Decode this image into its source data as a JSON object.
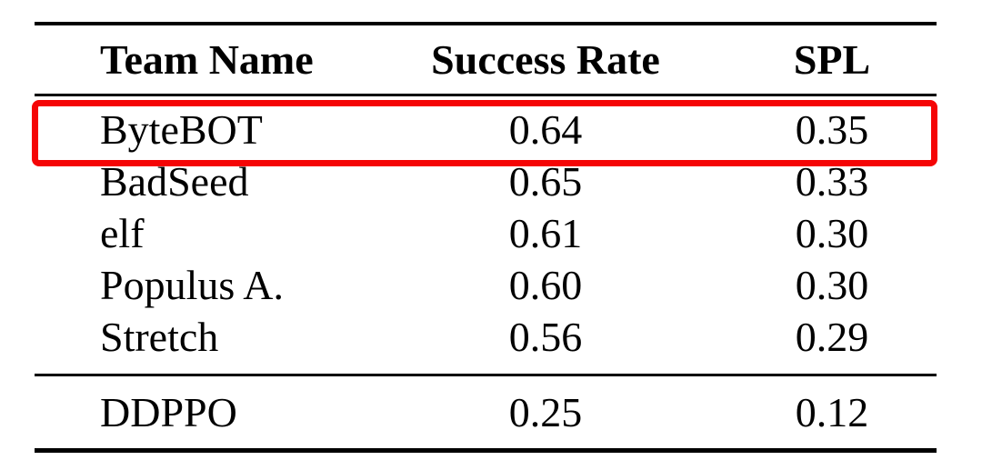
{
  "table": {
    "columns": {
      "team": "Team Name",
      "success_rate": "Success Rate",
      "spl": "SPL"
    },
    "rows": [
      {
        "team": "ByteBOT",
        "success_rate": "0.64",
        "spl": "0.35",
        "highlighted": true
      },
      {
        "team": "BadSeed",
        "success_rate": "0.65",
        "spl": "0.33",
        "highlighted": false
      },
      {
        "team": "elf",
        "success_rate": "0.61",
        "spl": "0.30",
        "highlighted": false
      },
      {
        "team": "Populus A.",
        "success_rate": "0.60",
        "spl": "0.30",
        "highlighted": false
      },
      {
        "team": "Stretch",
        "success_rate": "0.56",
        "spl": "0.29",
        "highlighted": false
      }
    ],
    "baseline_rows": [
      {
        "team": "DDPPO",
        "success_rate": "0.25",
        "spl": "0.12",
        "highlighted": false
      }
    ]
  },
  "highlight": {
    "color": "#f50506",
    "highlighted_team": "ByteBOT"
  },
  "chart_data": {
    "type": "table",
    "title": "",
    "columns": [
      "Team Name",
      "Success Rate",
      "SPL"
    ],
    "rows": [
      [
        "ByteBOT",
        0.64,
        0.35
      ],
      [
        "BadSeed",
        0.65,
        0.33
      ],
      [
        "elf",
        0.61,
        0.3
      ],
      [
        "Populus A.",
        0.6,
        0.3
      ],
      [
        "Stretch",
        0.56,
        0.29
      ],
      [
        "DDPPO",
        0.25,
        0.12
      ]
    ],
    "highlighted_row": "ByteBOT",
    "section_break_before_row": "DDPPO",
    "layout": "booktabs-style table: heavy top/bottom rules, mid rule under header, separator rule before baseline row"
  }
}
